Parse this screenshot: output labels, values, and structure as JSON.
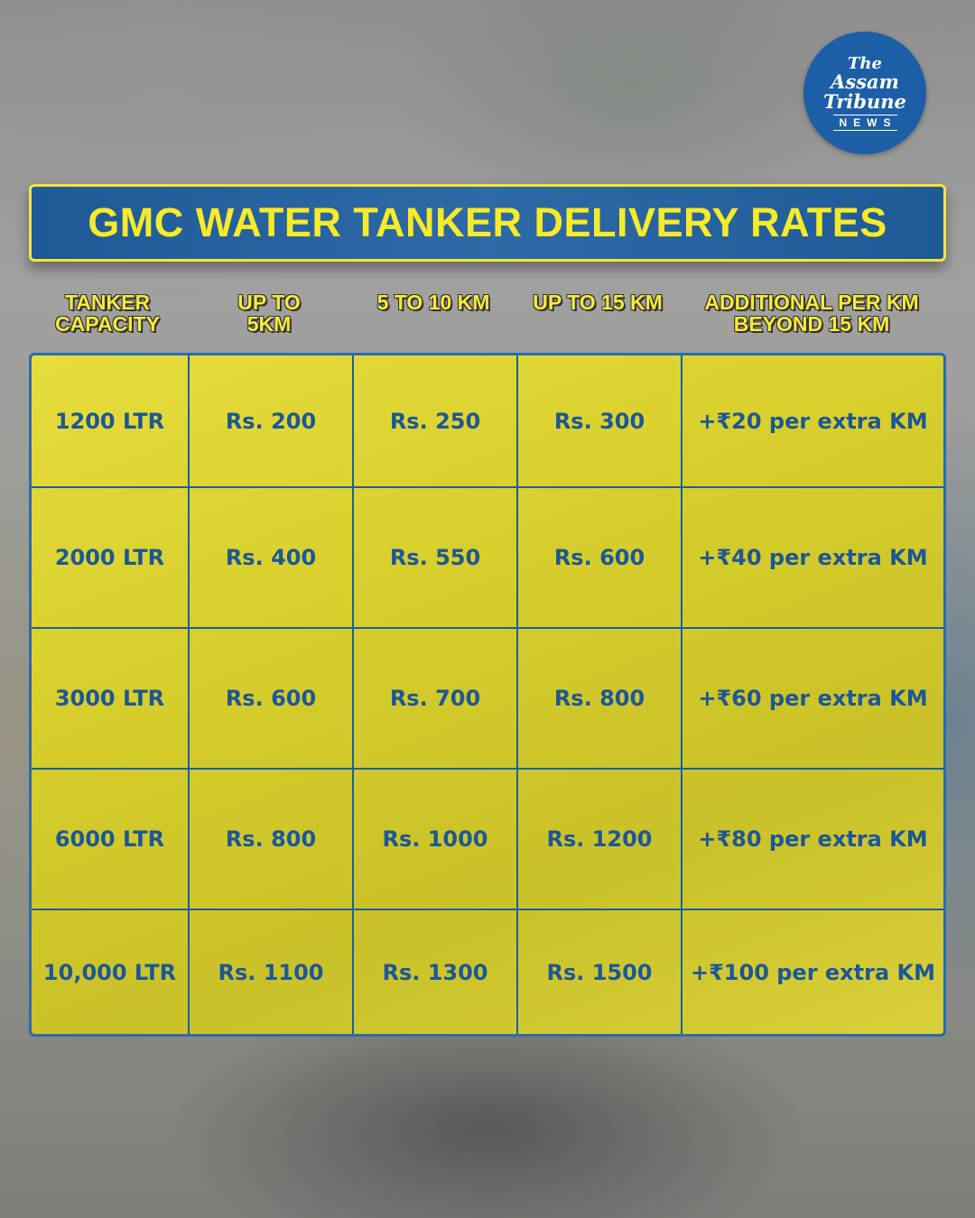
{
  "logo": {
    "line1": "The",
    "line2": "Assam",
    "line3": "Tribune",
    "line4": "NEWS"
  },
  "title": "GMC WATER TANKER DELIVERY RATES",
  "columns": [
    "TANKER\nCAPACITY",
    "UP TO\n5KM",
    "5 TO 10 KM",
    "UP TO 15 KM",
    "ADDITIONAL PER KM\nBEYOND 15 KM"
  ],
  "rows": [
    [
      "1200 LTR",
      "Rs. 200",
      "Rs. 250",
      "Rs. 300",
      "+₹20 per extra KM"
    ],
    [
      "2000 LTR",
      "Rs. 400",
      "Rs. 550",
      "Rs. 600",
      "+₹40 per extra KM"
    ],
    [
      "3000 LTR",
      "Rs. 600",
      "Rs. 700",
      "Rs. 800",
      "+₹60 per extra KM"
    ],
    [
      "6000 LTR",
      "Rs. 800",
      "Rs. 1000",
      "Rs. 1200",
      "+₹80 per extra KM"
    ],
    [
      "10,000 LTR",
      "Rs. 1100",
      "Rs. 1300",
      "Rs. 1500",
      "+₹100 per extra KM"
    ]
  ],
  "colors": {
    "title_text": "#f7ea29",
    "banner_bg": "#2d6aa7",
    "cell_text": "#1c5796",
    "table_border": "#1e5f98"
  }
}
